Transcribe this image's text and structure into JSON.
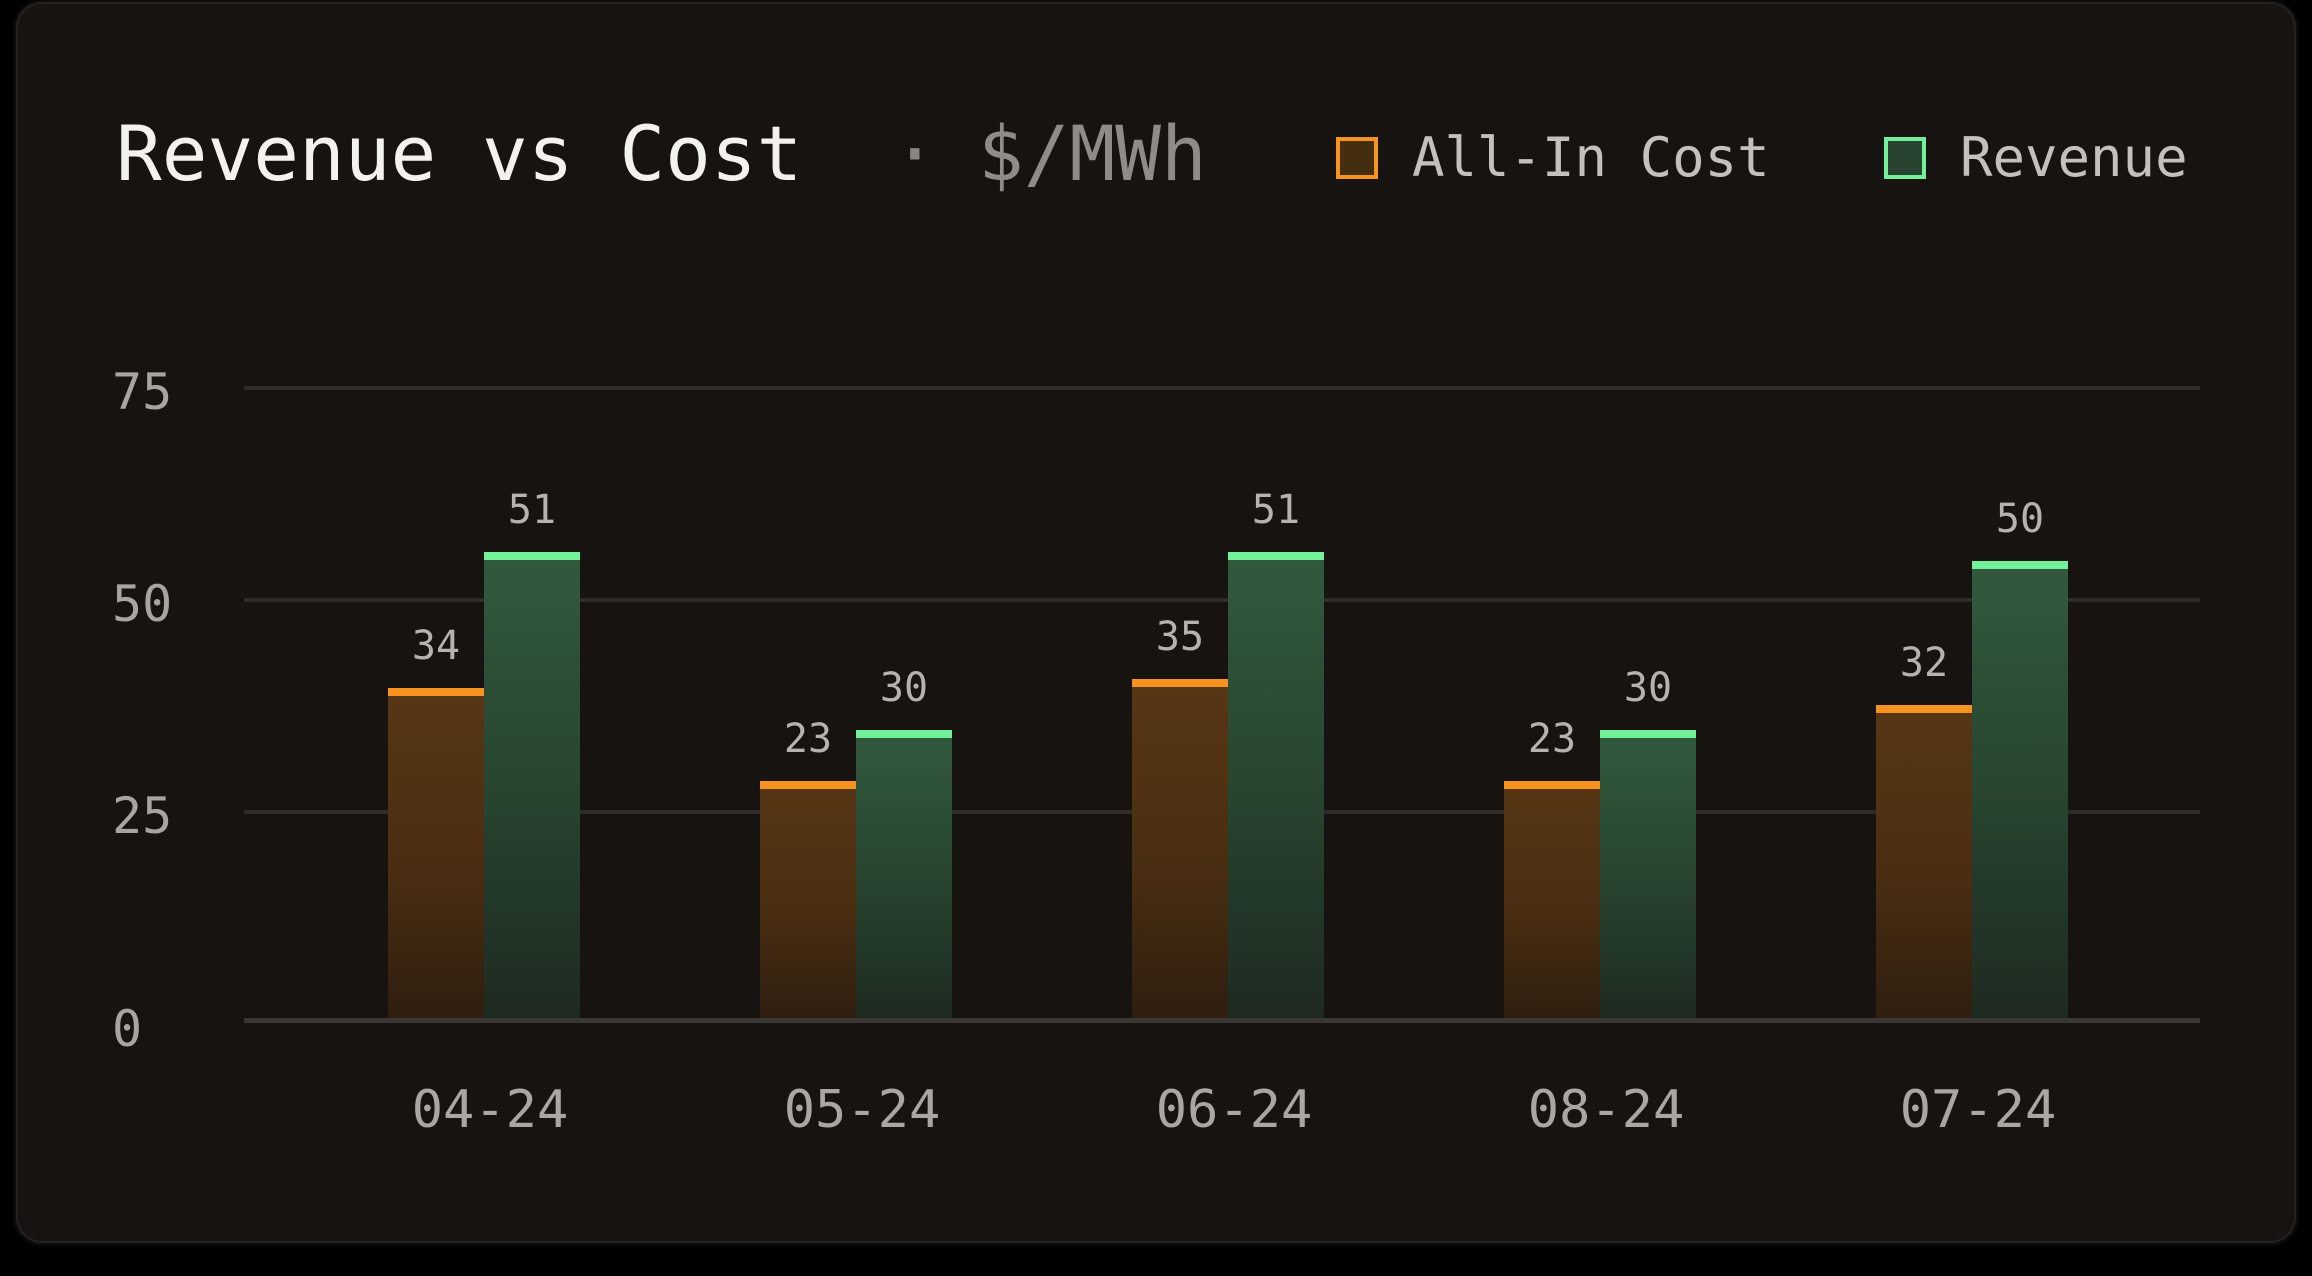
{
  "card": {
    "title": "Revenue vs Cost",
    "separator": "·",
    "unit": "$/MWh"
  },
  "legend": [
    {
      "label": "All-In Cost",
      "border": "#f7931e",
      "fill": "#452d10"
    },
    {
      "label": "Revenue",
      "border": "#72f09a",
      "fill": "#28432f"
    }
  ],
  "colors": {
    "background": "#161310",
    "cost_cap": "#f7931e",
    "revenue_cap": "#72f09a",
    "gridline": "#2e2b28",
    "text_muted": "#a8a5a0"
  },
  "y_axis": {
    "ticks": [
      "75",
      "50",
      "25",
      "0"
    ]
  },
  "x_axis": {
    "ticks": [
      "04-24",
      "05-24",
      "06-24",
      "08-24",
      "07-24"
    ]
  },
  "chart_data": {
    "type": "bar",
    "title": "Revenue vs Cost · $/MWh",
    "xlabel": "",
    "ylabel": "$/MWh",
    "ylim": [
      0,
      75
    ],
    "yticks": [
      0,
      25,
      50,
      75
    ],
    "grid": true,
    "legend_position": "top-right",
    "categories": [
      "04-24",
      "05-24",
      "06-24",
      "08-24",
      "07-24"
    ],
    "series": [
      {
        "name": "All-In Cost",
        "color": "#f7931e",
        "values": [
          34,
          23,
          35,
          23,
          32
        ]
      },
      {
        "name": "Revenue",
        "color": "#72f09a",
        "values": [
          51,
          30,
          51,
          30,
          50
        ]
      }
    ]
  }
}
